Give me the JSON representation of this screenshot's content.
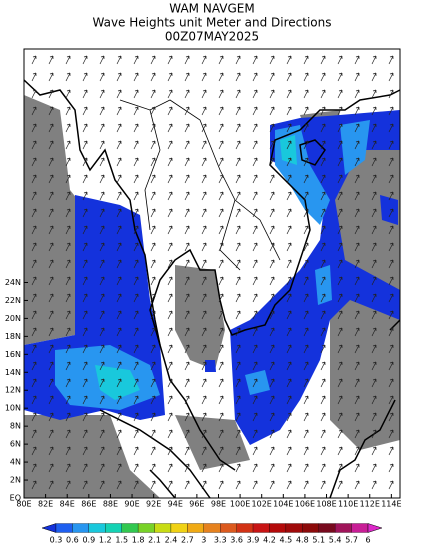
{
  "header": {
    "title": "WAM NAVGEM",
    "subtitle": "Wave Heights unit Meter and Directions",
    "date": "00Z07MAY2025"
  },
  "map": {
    "lon_labels": [
      "80E",
      "82E",
      "84E",
      "86E",
      "88E",
      "90E",
      "92E",
      "94E",
      "96E",
      "98E",
      "100E",
      "102E",
      "104E",
      "106E",
      "108E",
      "110E",
      "112E",
      "114E"
    ],
    "lat_labels": [
      "EQ",
      "2N",
      "4N",
      "6N",
      "8N",
      "10N",
      "12N",
      "14N",
      "16N",
      "18N",
      "20N",
      "22N",
      "24N"
    ]
  },
  "colorbar": {
    "labels": [
      "0.3",
      "0.6",
      "0.9",
      "1.2",
      "1.5",
      "1.8",
      "2.1",
      "2.4",
      "2.7",
      "3",
      "3.3",
      "3.6",
      "3.9",
      "4.2",
      "4.5",
      "4.8",
      "5.1",
      "5.4",
      "5.7",
      "6"
    ],
    "colors": [
      "#1432dc",
      "#1e5ff0",
      "#2896f0",
      "#19c8dc",
      "#14d2b4",
      "#32c850",
      "#78d228",
      "#c8dc14",
      "#f0d214",
      "#f0aa14",
      "#e6821e",
      "#dc5a1e",
      "#d23214",
      "#c81414",
      "#b40a0a",
      "#a00a0a",
      "#8c0a0a",
      "#780a1e",
      "#a0145a",
      "#c81e96",
      "#dc28c8"
    ]
  }
}
